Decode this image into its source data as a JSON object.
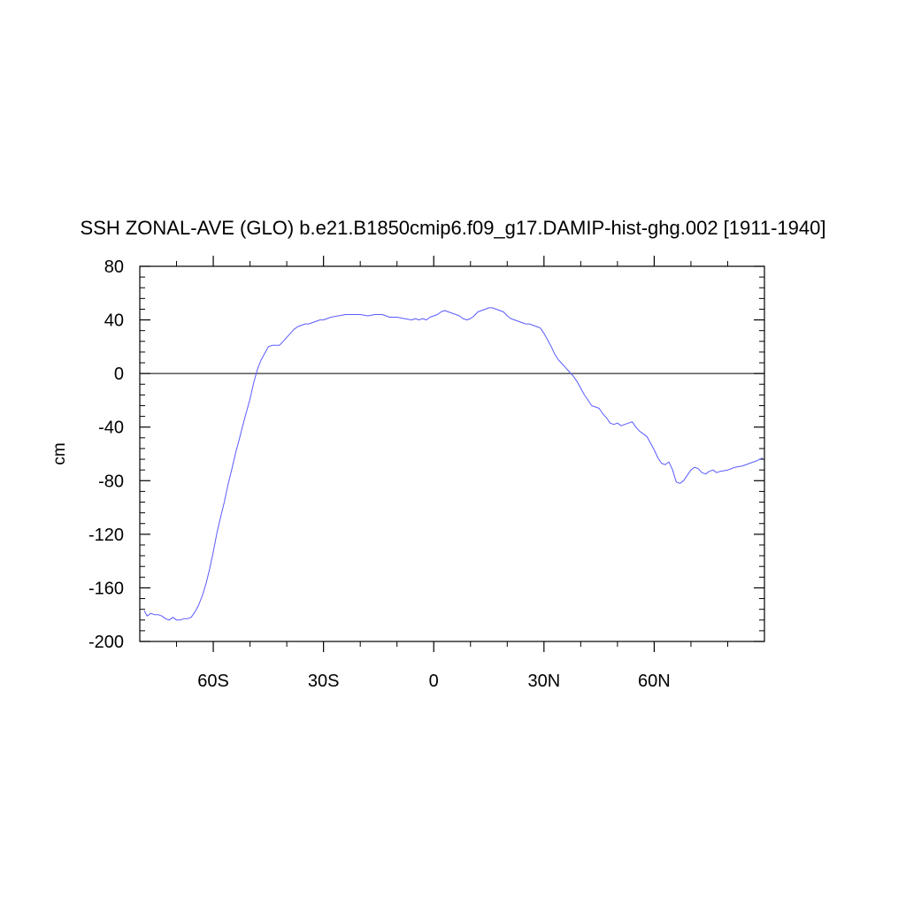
{
  "chart_data": {
    "type": "line",
    "title": "SSH ZONAL-AVE (GLO) b.e21.B1850cmip6.f09_g17.DAMIP-hist-ghg.002 [1911-1940]",
    "xlabel": "",
    "ylabel": "cm",
    "xlim": [
      -80,
      90
    ],
    "ylim": [
      -200,
      80
    ],
    "x_ticks": [
      {
        "value": -60,
        "label": "60S"
      },
      {
        "value": -30,
        "label": "30S"
      },
      {
        "value": 0,
        "label": "0"
      },
      {
        "value": 30,
        "label": "30N"
      },
      {
        "value": 60,
        "label": "60N"
      }
    ],
    "y_ticks": [
      {
        "value": 80,
        "label": "80"
      },
      {
        "value": 40,
        "label": "40"
      },
      {
        "value": 0,
        "label": "0"
      },
      {
        "value": -40,
        "label": "-40"
      },
      {
        "value": -80,
        "label": "-80"
      },
      {
        "value": -120,
        "label": "-120"
      },
      {
        "value": -160,
        "label": "-160"
      },
      {
        "value": -200,
        "label": "-200"
      }
    ],
    "reference_line": 0,
    "grid": false,
    "colors": {
      "series": "#5a5aff",
      "axes": "#000000"
    },
    "series": [
      {
        "x": [
          -78.8,
          -78,
          -77,
          -76,
          -75,
          -74,
          -73,
          -72,
          -71,
          -70,
          -69,
          -68,
          -67,
          -66,
          -65,
          -64,
          -63,
          -62,
          -61,
          -60,
          -59,
          -58,
          -57,
          -56,
          -55,
          -54,
          -53,
          -52,
          -51,
          -50,
          -49,
          -48,
          -47,
          -46,
          -45,
          -44,
          -43,
          -42,
          -41,
          -40,
          -39,
          -38,
          -37,
          -36,
          -35,
          -34,
          -33,
          -32,
          -31,
          -30,
          -28,
          -26,
          -24,
          -22,
          -20,
          -18,
          -16,
          -14,
          -12,
          -10,
          -8,
          -6,
          -5,
          -4,
          -3,
          -2,
          -1,
          0,
          1,
          2,
          3,
          4,
          5,
          6,
          7,
          8,
          9,
          10,
          11,
          12,
          13,
          14,
          15,
          16,
          17,
          18,
          19,
          20,
          21,
          22,
          23,
          24,
          25,
          26,
          27,
          28,
          29,
          30,
          31,
          32,
          33,
          34,
          35,
          36,
          37,
          38,
          39,
          40,
          41,
          42,
          43,
          44,
          45,
          46,
          47,
          48,
          49,
          50,
          51,
          52,
          53,
          54,
          55,
          56,
          57,
          58,
          59,
          60,
          61,
          62,
          63,
          64,
          65,
          66,
          67,
          68,
          69,
          70,
          71,
          72,
          73,
          74,
          75,
          76,
          77,
          78,
          80,
          82,
          84,
          86,
          88,
          89.5
        ],
        "y": [
          -177,
          -181,
          -179,
          -180,
          -180,
          -181,
          -183,
          -184,
          -182,
          -184,
          -184,
          -183,
          -183,
          -182,
          -178,
          -173,
          -166,
          -157,
          -146,
          -133,
          -119,
          -107,
          -96,
          -83,
          -72,
          -60,
          -50,
          -39,
          -29,
          -19,
          -7,
          3,
          10,
          15,
          20,
          21,
          21,
          21,
          24,
          27,
          30,
          33,
          35,
          36,
          37,
          37,
          38,
          39,
          40,
          40,
          42,
          43,
          44,
          44,
          44,
          43,
          44,
          44,
          42,
          42,
          41,
          40,
          41,
          40,
          41,
          40,
          42,
          43,
          44,
          46,
          47,
          46,
          45,
          44,
          43,
          41,
          40,
          41,
          43,
          46,
          47,
          48,
          49,
          49,
          48,
          47,
          46,
          43,
          41,
          40,
          39,
          38,
          37,
          37,
          36,
          35,
          34,
          30,
          25,
          20,
          14,
          10,
          7,
          4,
          1,
          -2,
          -6,
          -11,
          -16,
          -20,
          -24,
          -25,
          -26,
          -30,
          -33,
          -37,
          -38,
          -37,
          -39,
          -38,
          -37,
          -36,
          -40,
          -43,
          -45,
          -47,
          -52,
          -57,
          -63,
          -67,
          -68,
          -66,
          -72,
          -81,
          -82,
          -80,
          -76,
          -72,
          -70,
          -71,
          -74,
          -75,
          -73,
          -72,
          -74,
          -73,
          -72,
          -70,
          -69,
          -67,
          -65,
          -63
        ]
      }
    ]
  }
}
